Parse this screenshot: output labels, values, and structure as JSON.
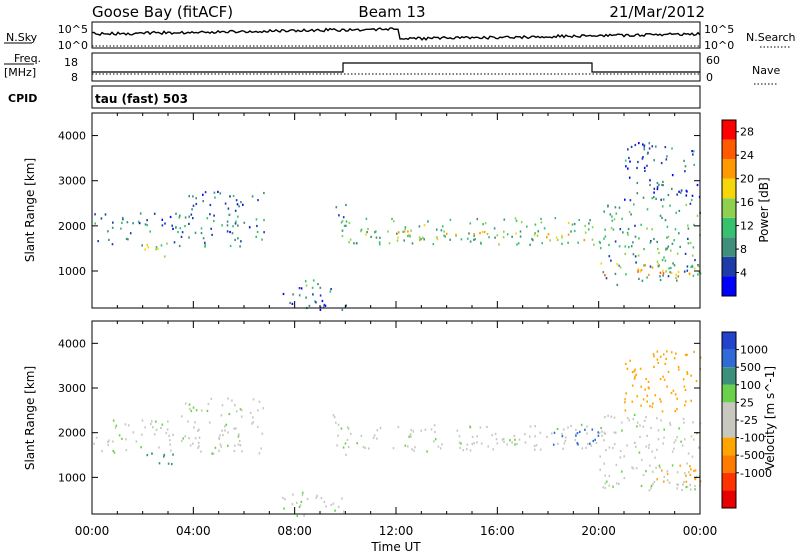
{
  "header": {
    "station": "Goose Bay (fitACF)",
    "beam": "Beam 13",
    "date": "21/Mar/2012"
  },
  "top_panels": {
    "nsky_label": "N.Sky",
    "nsky_ticks": [
      "10^5",
      "10^0"
    ],
    "nsearch_label": "N.Search",
    "nsearch_ticks": [
      "10^5",
      "10^0"
    ],
    "freq_label_1": "Freq.",
    "freq_label_2": "[MHz]",
    "freq_ticks": [
      "18",
      "8"
    ],
    "nave_label": "Nave",
    "nave_ticks": [
      "60",
      "0"
    ],
    "cpid_label": "CPID",
    "cpid_text": "tau (fast) 503"
  },
  "colors": {
    "power_scale": [
      "#0000ff",
      "#1e3ca8",
      "#3f8f7a",
      "#37c06e",
      "#8fd14f",
      "#f5d60a",
      "#ff9900",
      "#ff5a00",
      "#ff0000"
    ],
    "velocity_scale": [
      "#2244cc",
      "#2f6ad6",
      "#3c8f78",
      "#6bd04a",
      "#c8c8c0",
      "#c8c8c0",
      "#ffa500",
      "#ff7a00",
      "#ff3300",
      "#e60000"
    ]
  },
  "chart_data": [
    {
      "type": "heatmap",
      "panel": "power",
      "title": "",
      "xlabel": "Time UT",
      "ylabel": "Slant Range [km]",
      "x_tick_labels": [
        "00:00",
        "04:00",
        "08:00",
        "12:00",
        "16:00",
        "20:00",
        "00:00"
      ],
      "x_ticks_hours": [
        0,
        4,
        8,
        12,
        16,
        20,
        24
      ],
      "y_ticks": [
        1000,
        2000,
        3000,
        4000
      ],
      "ylim": [
        180,
        4500
      ],
      "colorbar": {
        "label": "Power [dB]",
        "ticks": [
          4,
          8,
          12,
          16,
          20,
          24,
          28
        ],
        "range": [
          0,
          30
        ]
      },
      "regions": [
        {
          "t0": 0.0,
          "t1": 6.8,
          "r0": 1550,
          "r1": 2300,
          "value": 8
        },
        {
          "t0": 2.0,
          "t1": 3.2,
          "r0": 1300,
          "r1": 1650,
          "value": 16
        },
        {
          "t0": 3.5,
          "t1": 6.8,
          "r0": 2350,
          "r1": 2800,
          "value": 6
        },
        {
          "t0": 7.5,
          "t1": 10.0,
          "r0": 150,
          "r1": 700,
          "value": 6
        },
        {
          "t0": 8.0,
          "t1": 9.5,
          "r0": 650,
          "r1": 850,
          "value": 10
        },
        {
          "t0": 9.5,
          "t1": 10.0,
          "r0": 1400,
          "r1": 2500,
          "value": 10
        },
        {
          "t0": 10.0,
          "t1": 20.0,
          "r0": 1600,
          "r1": 2200,
          "value": 12
        },
        {
          "t0": 12.0,
          "t1": 20.0,
          "r0": 1700,
          "r1": 1900,
          "value": 18
        },
        {
          "t0": 20.0,
          "t1": 24.0,
          "r0": 700,
          "r1": 2500,
          "value": 10
        },
        {
          "t0": 20.0,
          "t1": 24.0,
          "r0": 900,
          "r1": 1200,
          "value": 20
        },
        {
          "t0": 21.0,
          "t1": 24.0,
          "r0": 2500,
          "r1": 3900,
          "value": 6
        }
      ]
    },
    {
      "type": "heatmap",
      "panel": "velocity",
      "title": "",
      "xlabel": "Time UT",
      "ylabel": "Slant Range [km]",
      "x_tick_labels": [
        "00:00",
        "04:00",
        "08:00",
        "12:00",
        "16:00",
        "20:00",
        "00:00"
      ],
      "x_ticks_hours": [
        0,
        4,
        8,
        12,
        16,
        20,
        24
      ],
      "y_ticks": [
        1000,
        2000,
        3000,
        4000
      ],
      "ylim": [
        180,
        4500
      ],
      "colorbar": {
        "label": "Velocity [m s^-1]",
        "tick_labels": [
          "1000",
          "500",
          "100",
          "25",
          "-25",
          "-100",
          "-500",
          "-1000"
        ],
        "boundaries": [
          1000,
          500,
          100,
          25,
          -25,
          -100,
          -500,
          -1000
        ]
      },
      "regions": [
        {
          "t0": 0.0,
          "t1": 6.8,
          "r0": 1550,
          "r1": 2300,
          "value": 0
        },
        {
          "t0": 2.0,
          "t1": 3.2,
          "r0": 1300,
          "r1": 1650,
          "value": 300
        },
        {
          "t0": 3.5,
          "t1": 6.8,
          "r0": 2350,
          "r1": 2800,
          "value": 0
        },
        {
          "t0": 7.5,
          "t1": 10.0,
          "r0": 150,
          "r1": 700,
          "value": 0
        },
        {
          "t0": 9.5,
          "t1": 10.0,
          "r0": 1400,
          "r1": 2500,
          "value": 0
        },
        {
          "t0": 10.0,
          "t1": 20.0,
          "r0": 1600,
          "r1": 2200,
          "value": 0
        },
        {
          "t0": 18.0,
          "t1": 20.0,
          "r0": 1700,
          "r1": 2100,
          "value": 600
        },
        {
          "t0": 20.0,
          "t1": 24.0,
          "r0": 700,
          "r1": 2500,
          "value": 0
        },
        {
          "t0": 22.0,
          "t1": 24.0,
          "r0": 900,
          "r1": 1300,
          "value": -200
        },
        {
          "t0": 21.0,
          "t1": 24.0,
          "r0": 2500,
          "r1": 3900,
          "value": -150
        }
      ]
    }
  ]
}
